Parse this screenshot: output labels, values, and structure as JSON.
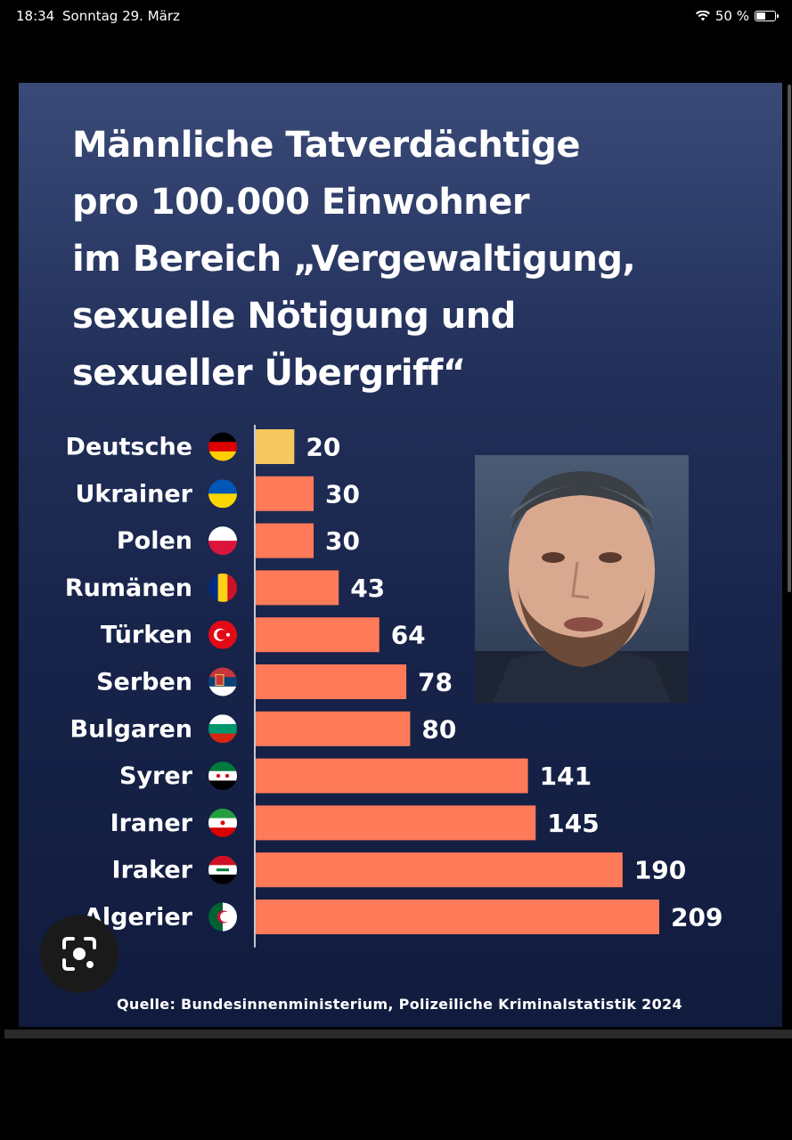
{
  "status_bar": {
    "time": "18:34",
    "date": "Sonntag 29. März",
    "battery_text": "50 %",
    "battery_level": 0.5,
    "icons": [
      "wifi-icon",
      "battery-icon"
    ]
  },
  "chart_data": {
    "type": "bar",
    "orientation": "horizontal",
    "title": "Männliche Tatverdächtige\npro 100.000 Einwohner\nim Bereich „Vergewaltigung,\nsexuelle Nötigung und\nsexueller Übergriff“",
    "categories": [
      "Deutsche",
      "Ukrainer",
      "Polen",
      "Rumänen",
      "Türken",
      "Serben",
      "Bulgaren",
      "Syrer",
      "Iraner",
      "Iraker",
      "Algerier"
    ],
    "values": [
      20,
      30,
      30,
      43,
      64,
      78,
      80,
      141,
      145,
      190,
      209
    ],
    "bar_colors": [
      "#f6c85f",
      "#ff7a59",
      "#ff7a59",
      "#ff7a59",
      "#ff7a59",
      "#ff7a59",
      "#ff7a59",
      "#ff7a59",
      "#ff7a59",
      "#ff7a59",
      "#ff7a59"
    ],
    "flag_icons": [
      "germany-flag-icon",
      "ukraine-flag-icon",
      "poland-flag-icon",
      "romania-flag-icon",
      "turkey-flag-icon",
      "serbia-flag-icon",
      "bulgaria-flag-icon",
      "syria-flag-icon",
      "iran-flag-icon",
      "iraq-flag-icon",
      "algeria-flag-icon"
    ],
    "xlim": [
      0,
      209
    ],
    "grid": false,
    "legend": "none",
    "source": "Quelle: Bundesinnenministerium, Polizeiliche Kriminalstatistik 2024"
  },
  "overlay": {
    "webcam_icon": "person-webcam-icon",
    "lens_icon": "google-lens-icon"
  }
}
